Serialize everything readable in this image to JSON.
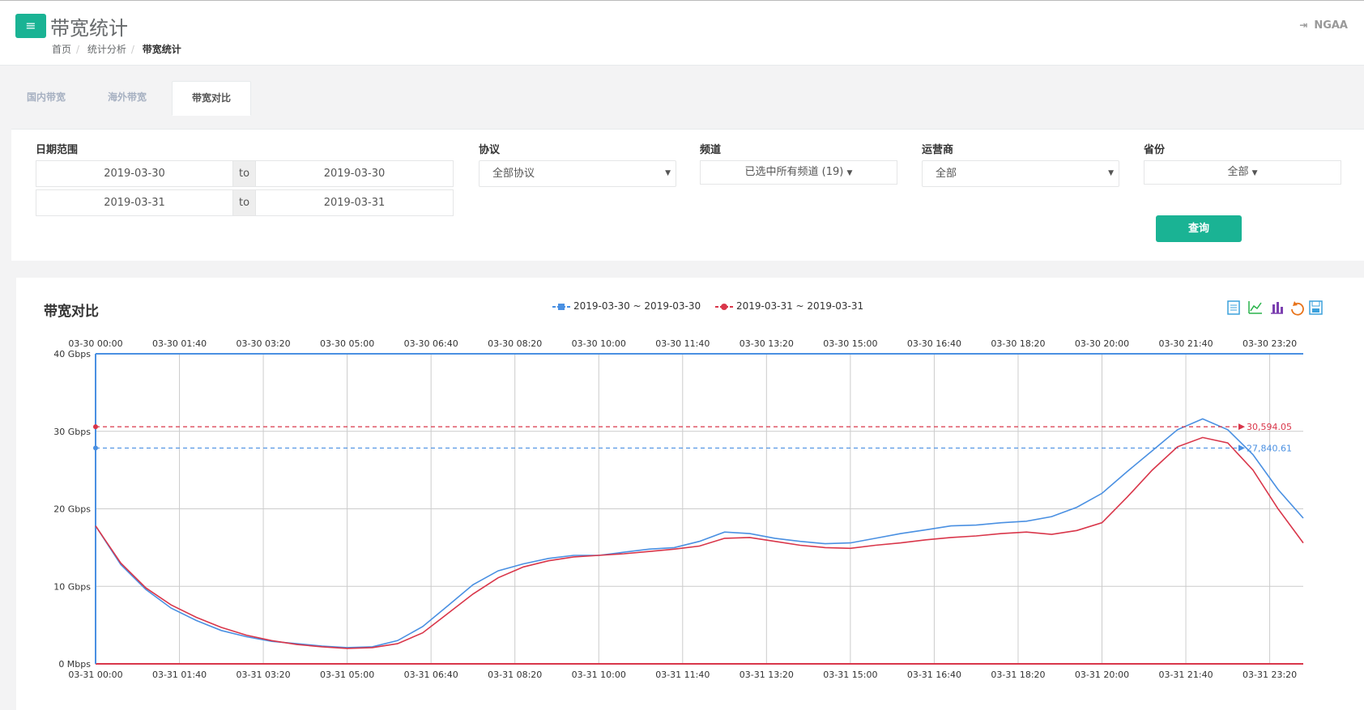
{
  "header": {
    "title": "带宽统计",
    "menu_icon": "≡",
    "breadcrumb": [
      "首页",
      "统计分析",
      "带宽统计"
    ],
    "logout_icon": "⇥",
    "user": "NGAA"
  },
  "tabs": [
    "国内带宽",
    "海外带宽",
    "带宽对比"
  ],
  "filters": {
    "date_label": "日期范围",
    "range1_start": "2019-03-30",
    "range1_to": "to",
    "range1_end": "2019-03-30",
    "range2_start": "2019-03-31",
    "range2_to": "to",
    "range2_end": "2019-03-31",
    "protocol_label": "协议",
    "protocol_value": "全部协议",
    "channel_label": "频道",
    "channel_value": "已选中所有频道 (19)",
    "isp_label": "运营商",
    "isp_value": "全部",
    "province_label": "省份",
    "province_value": "全部",
    "query_button": "查询"
  },
  "chart": {
    "title": "带宽对比",
    "toolbox_icons": [
      "data-view-icon",
      "line-chart-icon",
      "bar-chart-icon",
      "restore-icon",
      "save-image-icon"
    ]
  },
  "chart_data": {
    "type": "line",
    "title": "带宽对比",
    "y_axis": {
      "ticks": [
        "0 Mbps",
        "10 Gbps",
        "20 Gbps",
        "30 Gbps",
        "40 Gbps"
      ],
      "range": [
        0,
        40
      ],
      "unit": "Gbps"
    },
    "x_axis_top_ticks": [
      "03-30 00:00",
      "03-30 01:40",
      "03-30 03:20",
      "03-30 05:00",
      "03-30 06:40",
      "03-30 08:20",
      "03-30 10:00",
      "03-30 11:40",
      "03-30 13:20",
      "03-30 15:00",
      "03-30 16:40",
      "03-30 18:20",
      "03-30 20:00",
      "03-30 21:40",
      "03-30 23:20"
    ],
    "x_axis_bottom_ticks": [
      "03-31 00:00",
      "03-31 01:40",
      "03-31 03:20",
      "03-31 05:00",
      "03-31 06:40",
      "03-31 08:20",
      "03-31 10:00",
      "03-31 11:40",
      "03-31 13:20",
      "03-31 15:00",
      "03-31 16:40",
      "03-31 18:20",
      "03-31 20:00",
      "03-31 21:40",
      "03-31 23:20"
    ],
    "series": [
      {
        "name": "2019-03-30 ~ 2019-03-30",
        "color": "#4a90e2",
        "mark_line_label": "27,840.61",
        "mark_line_value": 27.84,
        "hours": [
          0,
          0.5,
          1,
          1.5,
          2,
          2.5,
          3,
          3.5,
          4,
          4.5,
          5,
          5.5,
          6,
          6.5,
          7,
          7.5,
          8,
          8.5,
          9,
          9.5,
          10,
          10.5,
          11,
          11.5,
          12,
          12.5,
          13,
          13.5,
          14,
          14.5,
          15,
          15.5,
          16,
          16.5,
          17,
          17.5,
          18,
          18.5,
          19,
          19.5,
          20,
          20.5,
          21,
          21.5,
          22,
          22.5,
          23,
          23.5,
          24
        ],
        "values": [
          17.8,
          12.8,
          9.6,
          7.2,
          5.6,
          4.3,
          3.5,
          2.9,
          2.6,
          2.3,
          2.1,
          2.2,
          3.0,
          4.8,
          7.5,
          10.2,
          12.0,
          12.9,
          13.6,
          14.0,
          14.0,
          14.4,
          14.8,
          15.0,
          15.8,
          17.0,
          16.8,
          16.2,
          15.8,
          15.5,
          15.6,
          16.2,
          16.8,
          17.3,
          17.8,
          17.9,
          18.2,
          18.4,
          19.0,
          20.2,
          22.0,
          24.8,
          27.5,
          30.2,
          31.6,
          30.2,
          27.0,
          22.5,
          18.8
        ]
      },
      {
        "name": "2019-03-31 ~ 2019-03-31",
        "color": "#d9364a",
        "mark_line_label": "30,594.05",
        "mark_line_value": 30.59,
        "hours": [
          0,
          0.5,
          1,
          1.5,
          2,
          2.5,
          3,
          3.5,
          4,
          4.5,
          5,
          5.5,
          6,
          6.5,
          7,
          7.5,
          8,
          8.5,
          9,
          9.5,
          10,
          10.5,
          11,
          11.5,
          12,
          12.5,
          13,
          13.5,
          14,
          14.5,
          15,
          15.5,
          16,
          16.5,
          17,
          17.5,
          18,
          18.5,
          19,
          19.5,
          20,
          20.5,
          21,
          21.5,
          22,
          22.5,
          23,
          23.5,
          24
        ],
        "values": [
          17.8,
          13.0,
          9.8,
          7.6,
          6.0,
          4.7,
          3.7,
          3.0,
          2.5,
          2.2,
          2.0,
          2.1,
          2.6,
          4.0,
          6.5,
          9.0,
          11.1,
          12.5,
          13.3,
          13.8,
          14.0,
          14.2,
          14.5,
          14.8,
          15.2,
          16.2,
          16.3,
          15.8,
          15.3,
          15.0,
          14.9,
          15.3,
          15.6,
          16.0,
          16.3,
          16.5,
          16.8,
          17.0,
          16.7,
          17.2,
          18.2,
          21.5,
          25.0,
          28.0,
          29.2,
          28.5,
          25.0,
          20.0,
          15.6
        ]
      }
    ]
  }
}
